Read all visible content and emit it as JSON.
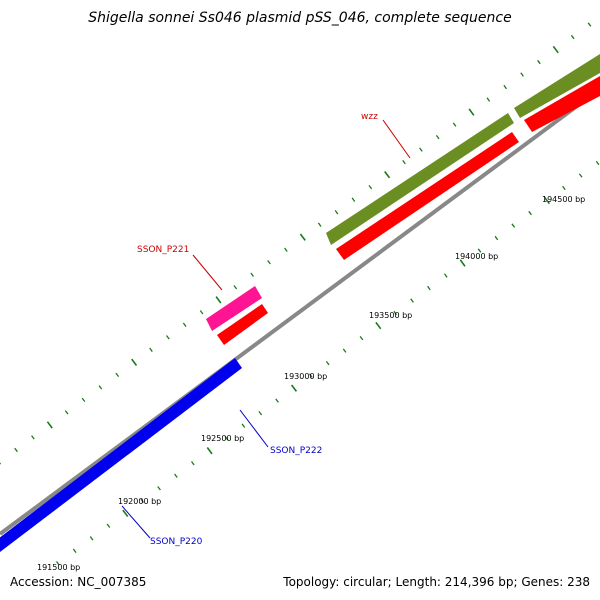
{
  "title": "Shigella sonnei Ss046 plasmid pSS_046, complete sequence",
  "accession": "Accession: NC_007385",
  "summary": "Topology: circular; Length: 214,396 bp; Genes: 238",
  "backbone_color": "#888888",
  "tick_color": "#1a7a1a",
  "ticks": [
    "191500 bp",
    "192000 bp",
    "192500 bp",
    "193000 bp",
    "193500 bp",
    "194000 bp",
    "194500 bp"
  ],
  "genes": [
    {
      "label": "SSON_P220",
      "color": "#0000ee",
      "label_color": "#0000cc"
    },
    {
      "label": "SSON_P222",
      "color": "#0000ee",
      "label_color": "#0000cc"
    },
    {
      "label": "SSON_P221",
      "color": "#ff1493",
      "label_color": "#cc0000"
    },
    {
      "label": "wzz",
      "color": "#ff0000",
      "label_color": "#cc0000"
    }
  ],
  "feature_colors": {
    "olive": "#6b8e23",
    "red": "#ff0000",
    "pink": "#ff1493",
    "blue": "#0000ee"
  }
}
